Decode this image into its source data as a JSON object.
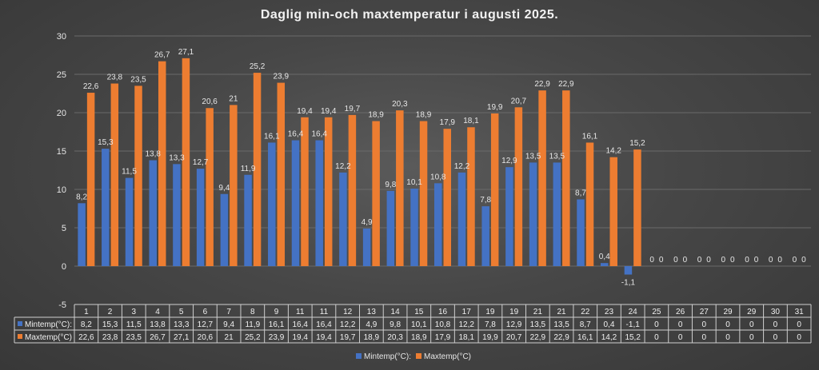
{
  "chart_data": {
    "type": "bar",
    "title": "Daglig min-och maxtemperatur i augusti 2025.",
    "xlabel": "",
    "ylabel": "",
    "ylim": [
      -5,
      30
    ],
    "yticks": [
      -5,
      0,
      5,
      10,
      15,
      20,
      25,
      30
    ],
    "categories": [
      "1",
      "2",
      "3",
      "4",
      "5",
      "6",
      "7",
      "8",
      "9",
      "11",
      "11",
      "12",
      "13",
      "14",
      "15",
      "16",
      "17",
      "19",
      "19",
      "21",
      "21",
      "22",
      "23",
      "24",
      "25",
      "26",
      "27",
      "29",
      "29",
      "30",
      "31"
    ],
    "series": [
      {
        "name": "Mintemp(°C):",
        "color": "#4472c4",
        "values": [
          8.2,
          15.3,
          11.5,
          13.8,
          13.3,
          12.7,
          9.4,
          11.9,
          16.1,
          16.4,
          16.4,
          12.2,
          4.9,
          9.8,
          10.1,
          10.8,
          12.2,
          7.8,
          12.9,
          13.5,
          13.5,
          8.7,
          0.4,
          -1.1,
          0,
          0,
          0,
          0,
          0,
          0,
          0
        ],
        "labels": [
          "8,2",
          "15,3",
          "11,5",
          "13,8",
          "13,3",
          "12,7",
          "9,4",
          "11,9",
          "16,1",
          "16,4",
          "16,4",
          "12,2",
          "4,9",
          "9,8",
          "10,1",
          "10,8",
          "12,2",
          "7,8",
          "12,9",
          "13,5",
          "13,5",
          "8,7",
          "0,4",
          "-1,1",
          "0",
          "0",
          "0",
          "0",
          "0",
          "0",
          "0"
        ]
      },
      {
        "name": "Maxtemp(°C)",
        "color": "#ed7d31",
        "values": [
          22.6,
          23.8,
          23.5,
          26.7,
          27.1,
          20.6,
          21,
          25.2,
          23.9,
          19.4,
          19.4,
          19.7,
          18.9,
          20.3,
          18.9,
          17.9,
          18.1,
          19.9,
          20.7,
          22.9,
          22.9,
          16.1,
          14.2,
          15.2,
          0,
          0,
          0,
          0,
          0,
          0,
          0
        ],
        "labels": [
          "22,6",
          "23,8",
          "23,5",
          "26,7",
          "27,1",
          "20,6",
          "21",
          "25,2",
          "23,9",
          "19,4",
          "19,4",
          "19,7",
          "18,9",
          "20,3",
          "18,9",
          "17,9",
          "18,1",
          "19,9",
          "20,7",
          "22,9",
          "22,9",
          "16,1",
          "14,2",
          "15,2",
          "0",
          "0",
          "0",
          "0",
          "0",
          "0",
          "0"
        ]
      }
    ],
    "legend": {
      "position": "bottom",
      "items": [
        "Mintemp(°C):",
        "Maxtemp(°C)"
      ]
    },
    "data_table": true,
    "grid": true
  }
}
